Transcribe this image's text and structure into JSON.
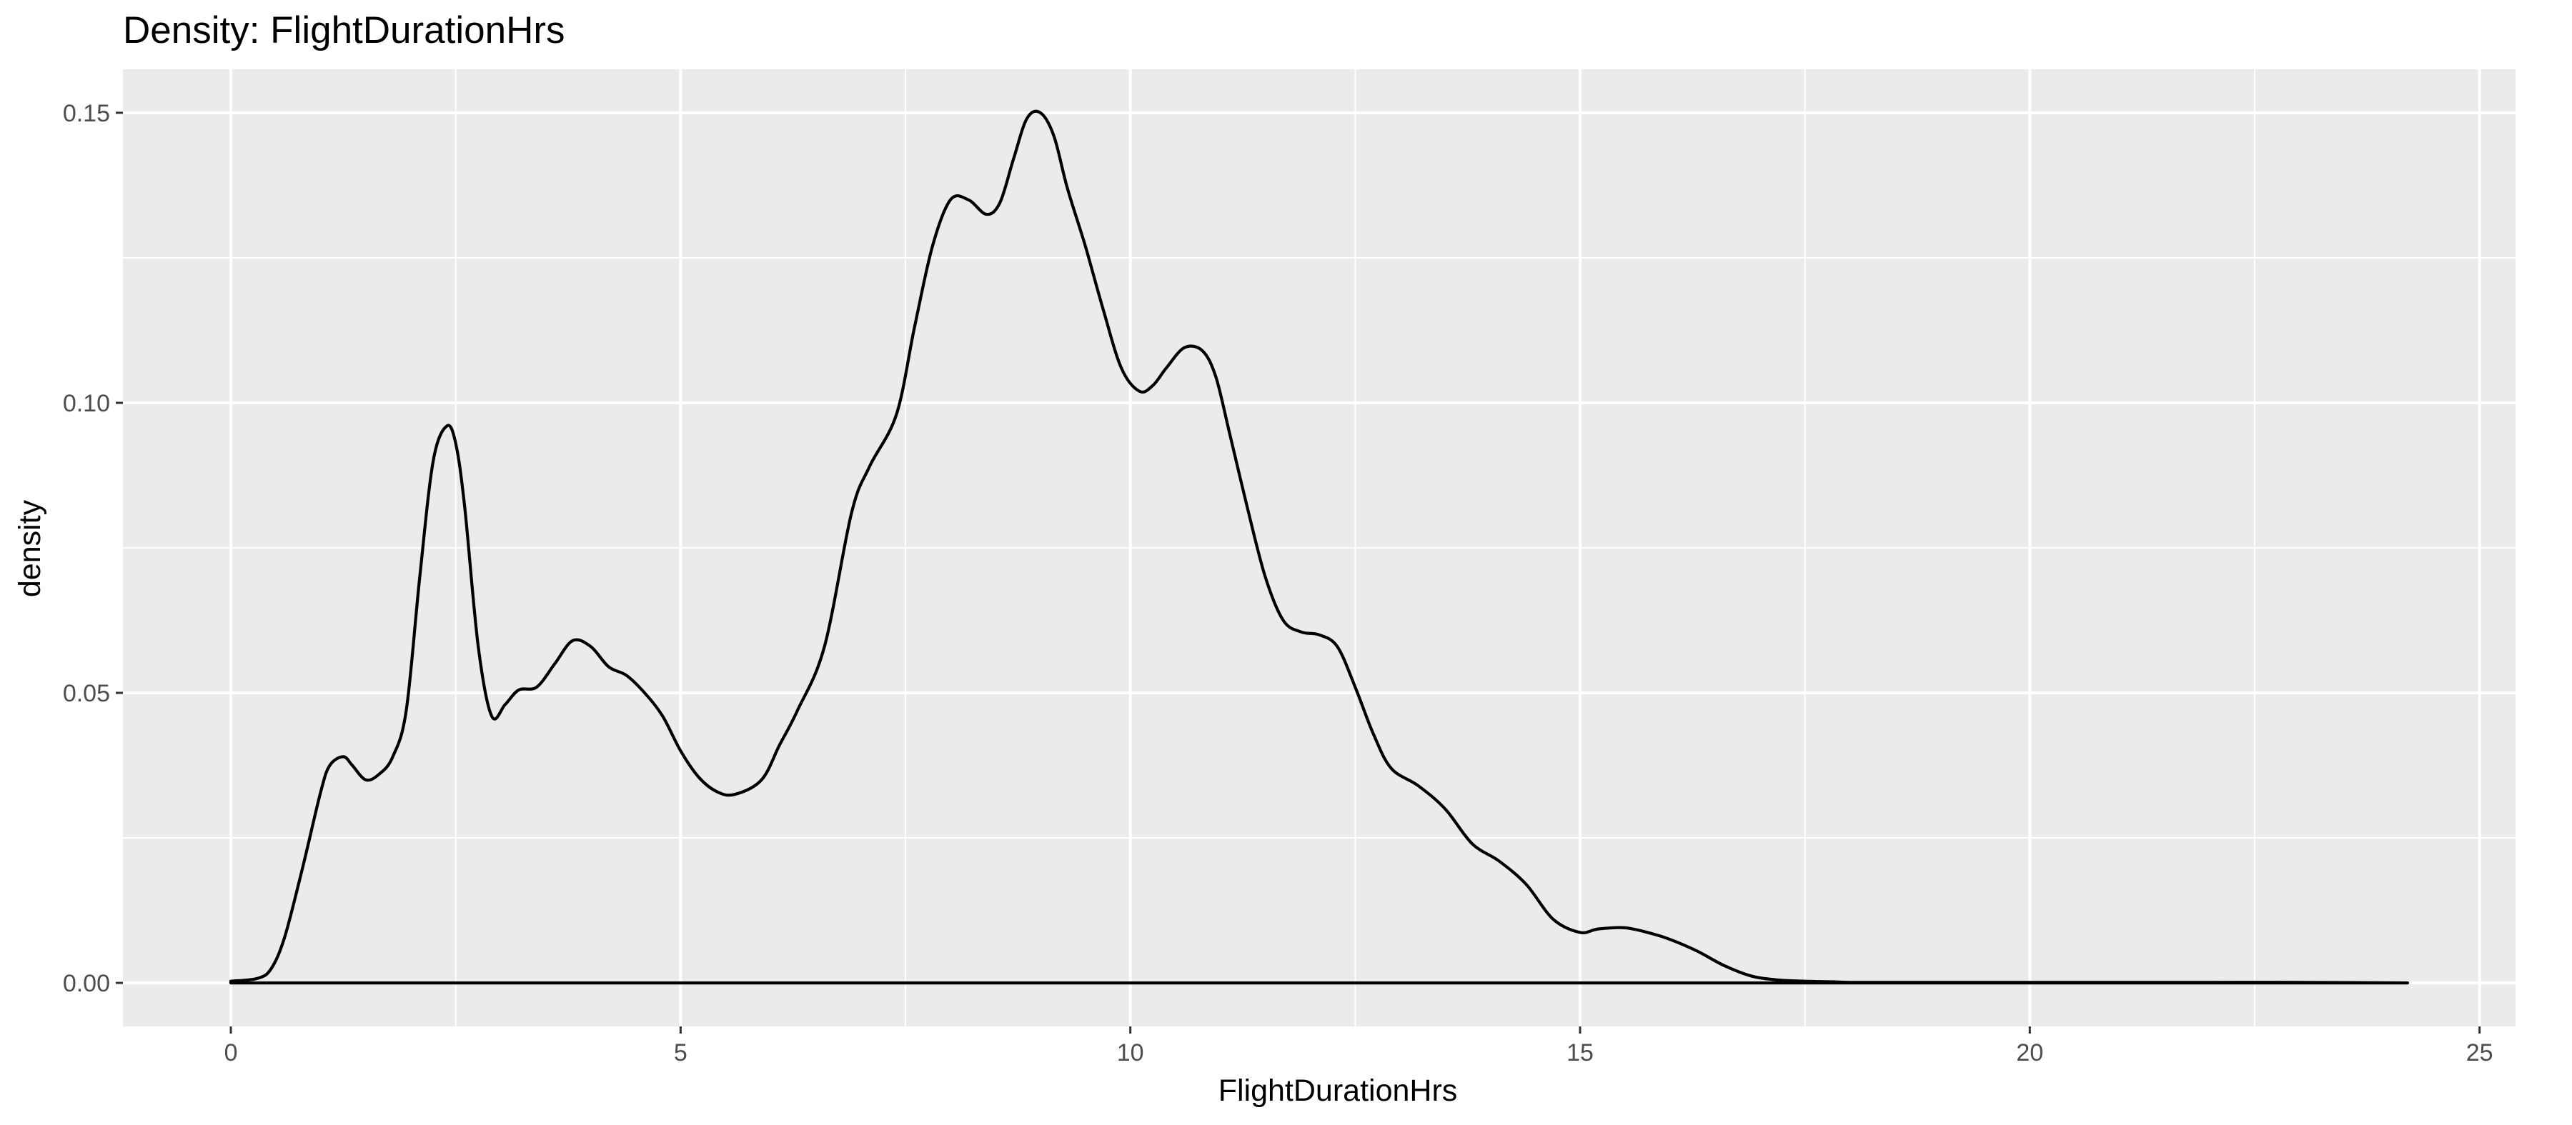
{
  "chart_data": {
    "type": "area",
    "title": "Density: FlightDurationHrs",
    "xlabel": "FlightDurationHrs",
    "ylabel": "density",
    "xlim": [
      -1.2,
      25.4
    ],
    "ylim": [
      -0.0075,
      0.1575
    ],
    "x_ticks": [
      0,
      5,
      10,
      15,
      20,
      25
    ],
    "x_tick_labels": [
      "0",
      "5",
      "10",
      "15",
      "20",
      "25"
    ],
    "y_ticks": [
      0,
      0.05,
      0.1,
      0.15
    ],
    "y_tick_labels": [
      "0.00",
      "0.05",
      "0.10",
      "0.15"
    ],
    "grid": true,
    "background": "#ebebeb",
    "grid_color": "#ffffff",
    "line_color": "#000000",
    "series": [
      {
        "x": [
          0.0,
          0.3,
          0.45,
          0.6,
          0.8,
          1.0,
          1.1,
          1.25,
          1.35,
          1.5,
          1.65,
          1.8,
          1.95,
          2.1,
          2.25,
          2.4,
          2.5,
          2.6,
          2.75,
          2.9,
          3.05,
          3.2,
          3.4,
          3.6,
          3.8,
          4.0,
          4.2,
          4.4,
          4.6,
          4.8,
          5.0,
          5.2,
          5.4,
          5.6,
          5.9,
          6.1,
          6.3,
          6.6,
          6.9,
          7.1,
          7.4,
          7.6,
          7.8,
          8.0,
          8.2,
          8.4,
          8.55,
          8.7,
          8.85,
          9.0,
          9.15,
          9.3,
          9.5,
          9.7,
          9.9,
          10.1,
          10.25,
          10.4,
          10.6,
          10.8,
          10.95,
          11.1,
          11.3,
          11.5,
          11.7,
          11.9,
          12.1,
          12.3,
          12.5,
          12.7,
          12.9,
          13.2,
          13.5,
          13.8,
          14.1,
          14.4,
          14.7,
          15.0,
          15.2,
          15.5,
          15.8,
          16.0,
          16.3,
          16.6,
          16.9,
          17.2,
          17.5,
          17.8,
          18.0,
          18.5,
          19.0,
          20.0,
          21.0,
          22.0,
          23.0,
          24.2
        ],
        "y": [
          0.0003,
          0.0008,
          0.0025,
          0.008,
          0.02,
          0.033,
          0.0375,
          0.039,
          0.0375,
          0.035,
          0.036,
          0.039,
          0.047,
          0.07,
          0.09,
          0.096,
          0.093,
          0.082,
          0.058,
          0.046,
          0.048,
          0.0505,
          0.051,
          0.055,
          0.059,
          0.058,
          0.0545,
          0.053,
          0.05,
          0.046,
          0.04,
          0.0355,
          0.033,
          0.0325,
          0.035,
          0.041,
          0.047,
          0.058,
          0.081,
          0.089,
          0.098,
          0.113,
          0.127,
          0.135,
          0.135,
          0.1325,
          0.1345,
          0.142,
          0.149,
          0.15,
          0.146,
          0.137,
          0.127,
          0.116,
          0.106,
          0.102,
          0.103,
          0.106,
          0.1095,
          0.109,
          0.1045,
          0.095,
          0.082,
          0.07,
          0.0625,
          0.0605,
          0.06,
          0.058,
          0.051,
          0.043,
          0.037,
          0.034,
          0.03,
          0.024,
          0.021,
          0.017,
          0.011,
          0.0087,
          0.0093,
          0.0095,
          0.0085,
          0.0075,
          0.0055,
          0.003,
          0.0012,
          0.0005,
          0.0003,
          0.0002,
          0.0001,
          0.0001,
          0.0001,
          0.0001,
          0.0001,
          0.0001,
          0.0001,
          0.0
        ]
      }
    ]
  }
}
